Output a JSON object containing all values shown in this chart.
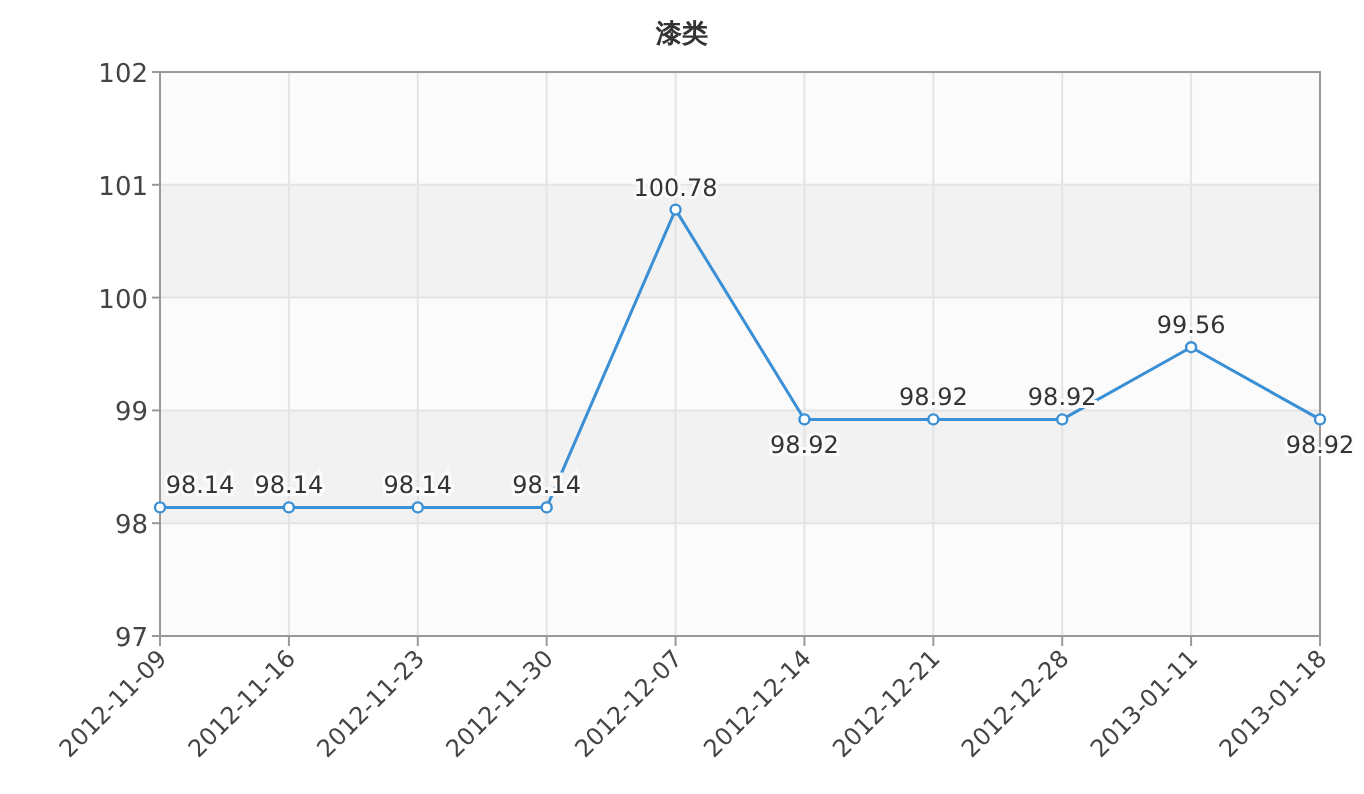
{
  "chart_data": {
    "type": "line",
    "title": "漆类",
    "categories": [
      "2012-11-09",
      "2012-11-16",
      "2012-11-23",
      "2012-11-30",
      "2012-12-07",
      "2012-12-14",
      "2012-12-21",
      "2012-12-28",
      "2013-01-11",
      "2013-01-18"
    ],
    "series": [
      {
        "color": "#3b8fd4",
        "values": [
          98.14,
          98.14,
          98.14,
          98.14,
          100.78,
          98.92,
          98.92,
          98.92,
          99.56,
          98.92
        ]
      }
    ],
    "ylim": [
      97,
      102
    ],
    "yticks": [
      97,
      98,
      99,
      100,
      101,
      102
    ],
    "grid": true,
    "marker": "circle",
    "data_labels": true
  }
}
